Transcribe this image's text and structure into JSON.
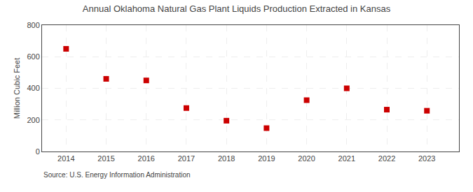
{
  "chart_data": {
    "type": "scatter",
    "title": "Annual Oklahoma Natural Gas Plant Liquids Production Extracted in Kansas",
    "ylabel": "Million Cubic Feet",
    "source": "Source: U.S. Energy Information Administration",
    "x": [
      2014,
      2015,
      2016,
      2017,
      2018,
      2019,
      2020,
      2021,
      2022,
      2023
    ],
    "values": [
      650,
      460,
      450,
      275,
      195,
      148,
      325,
      400,
      265,
      258
    ],
    "xlim": [
      2013.4,
      2023.8
    ],
    "xticks": [
      2014,
      2015,
      2016,
      2017,
      2018,
      2019,
      2020,
      2021,
      2022,
      2023
    ],
    "ylim": [
      0,
      800
    ],
    "yticks": [
      0,
      200,
      400,
      600,
      800
    ],
    "color": "#cc0000",
    "marker": "square",
    "grid": true
  }
}
